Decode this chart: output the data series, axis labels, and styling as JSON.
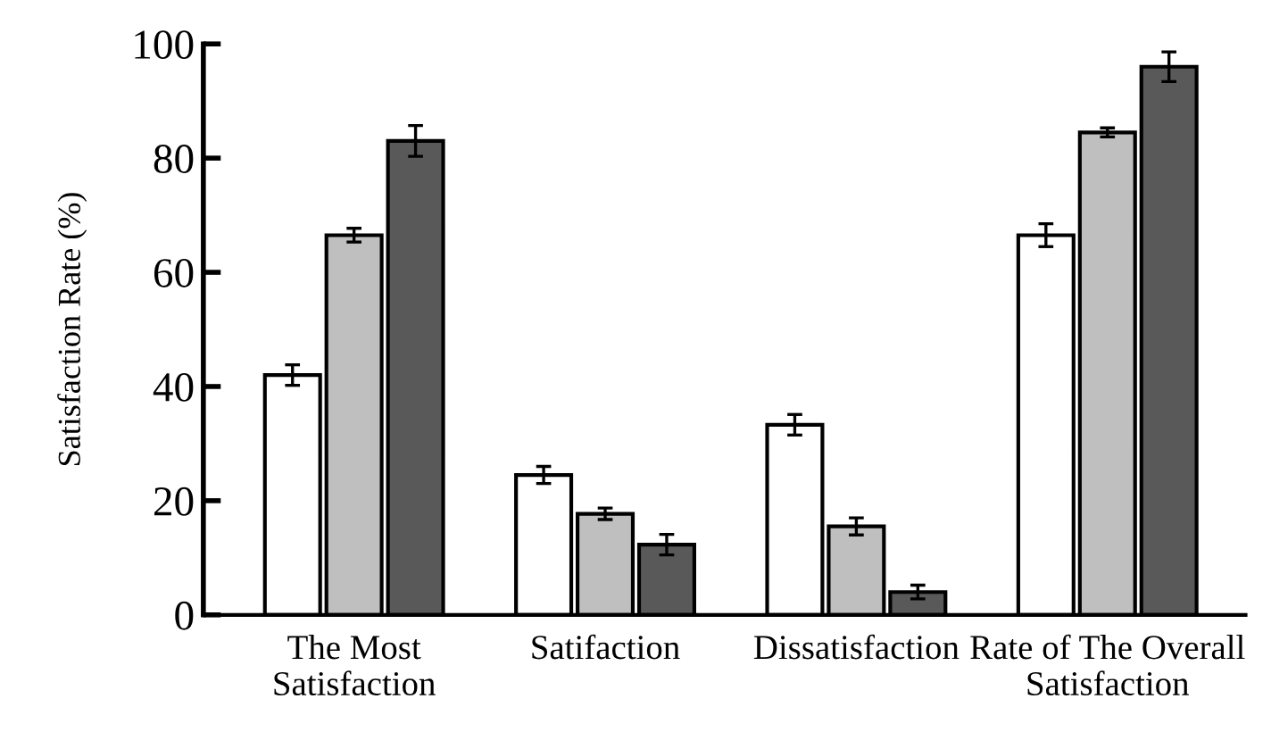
{
  "chart_data": {
    "type": "bar",
    "ylabel": "Satisfaction Rate (%)",
    "categories": [
      "The Most\nSatisfaction",
      "Satifaction",
      "Dissatisfaction",
      "Rate of The Overall\nSatisfaction"
    ],
    "series": [
      {
        "color": "#ffffff",
        "values": [
          42,
          24.5,
          33.3,
          66.5
        ],
        "errors": [
          1.8,
          1.5,
          1.8,
          2
        ]
      },
      {
        "color": "#bfbfbf",
        "values": [
          66.5,
          17.7,
          15.5,
          84.5
        ],
        "errors": [
          1.2,
          1,
          1.5,
          0.8
        ]
      },
      {
        "color": "#595959",
        "values": [
          83,
          12.3,
          4,
          96
        ],
        "errors": [
          2.7,
          1.8,
          1.2,
          2.6
        ]
      }
    ],
    "ylim": [
      0,
      100
    ],
    "yticks": [
      0,
      20,
      40,
      60,
      80,
      100
    ],
    "grid": false,
    "legend": false
  }
}
